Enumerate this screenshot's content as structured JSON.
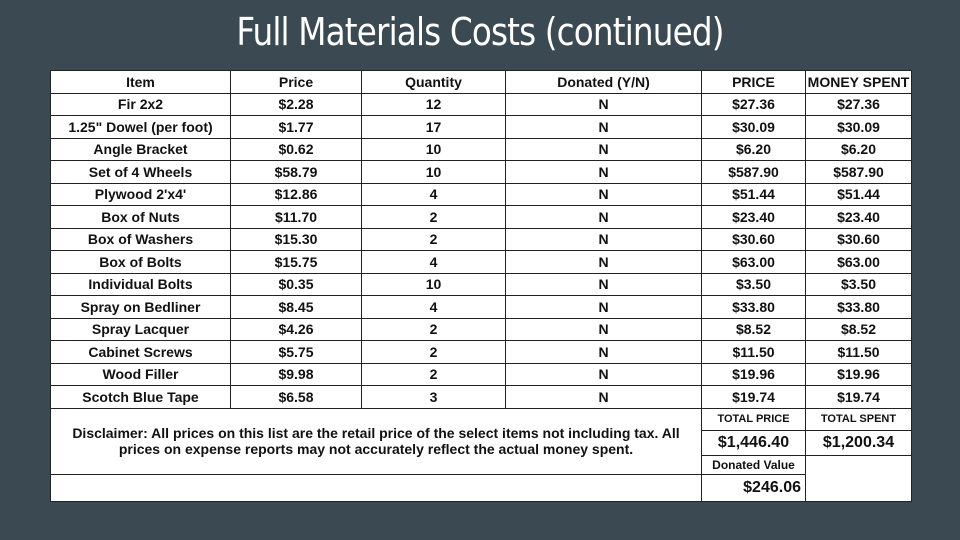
{
  "title": "Full Materials Costs (continued)",
  "headers": [
    "Item",
    "Price",
    "Quantity",
    "Donated (Y/N)",
    "PRICE",
    "MONEY SPENT"
  ],
  "rows": [
    [
      "Fir 2x2",
      "$2.28",
      "12",
      "N",
      "$27.36",
      "$27.36"
    ],
    [
      "1.25\" Dowel (per foot)",
      "$1.77",
      "17",
      "N",
      "$30.09",
      "$30.09"
    ],
    [
      "Angle Bracket",
      "$0.62",
      "10",
      "N",
      "$6.20",
      "$6.20"
    ],
    [
      "Set of 4 Wheels",
      "$58.79",
      "10",
      "N",
      "$587.90",
      "$587.90"
    ],
    [
      "Plywood 2'x4'",
      "$12.86",
      "4",
      "N",
      "$51.44",
      "$51.44"
    ],
    [
      "Box of Nuts",
      "$11.70",
      "2",
      "N",
      "$23.40",
      "$23.40"
    ],
    [
      "Box of Washers",
      "$15.30",
      "2",
      "N",
      "$30.60",
      "$30.60"
    ],
    [
      "Box of Bolts",
      "$15.75",
      "4",
      "N",
      "$63.00",
      "$63.00"
    ],
    [
      "Individual Bolts",
      "$0.35",
      "10",
      "N",
      "$3.50",
      "$3.50"
    ],
    [
      "Spray on Bedliner",
      "$8.45",
      "4",
      "N",
      "$33.80",
      "$33.80"
    ],
    [
      "Spray Lacquer",
      "$4.26",
      "2",
      "N",
      "$8.52",
      "$8.52"
    ],
    [
      "Cabinet Screws",
      "$5.75",
      "2",
      "N",
      "$11.50",
      "$11.50"
    ],
    [
      "Wood Filler",
      "$9.98",
      "2",
      "N",
      "$19.96",
      "$19.96"
    ],
    [
      "Scotch Blue Tape",
      "$6.58",
      "3",
      "N",
      "$19.74",
      "$19.74"
    ]
  ],
  "disclaimer": "Disclaimer: All prices on this list are the retail price of the select items not including tax. All prices on expense reports may not accurately reflect the actual money spent.",
  "totals": {
    "total_price_label": "TOTAL PRICE",
    "total_spent_label": "TOTAL SPENT",
    "total_price_value": "$1,446.40",
    "total_spent_value": "$1,200.34",
    "donated_label": "Donated Value",
    "donated_value": "$246.06"
  },
  "colors": {
    "background": "#3b4a52",
    "header_fill": "#bfe6cf",
    "item_fill": "#c8f2f8",
    "total_spent_fill": "#c79ab6",
    "donated_fill": "#8f7bc4"
  }
}
